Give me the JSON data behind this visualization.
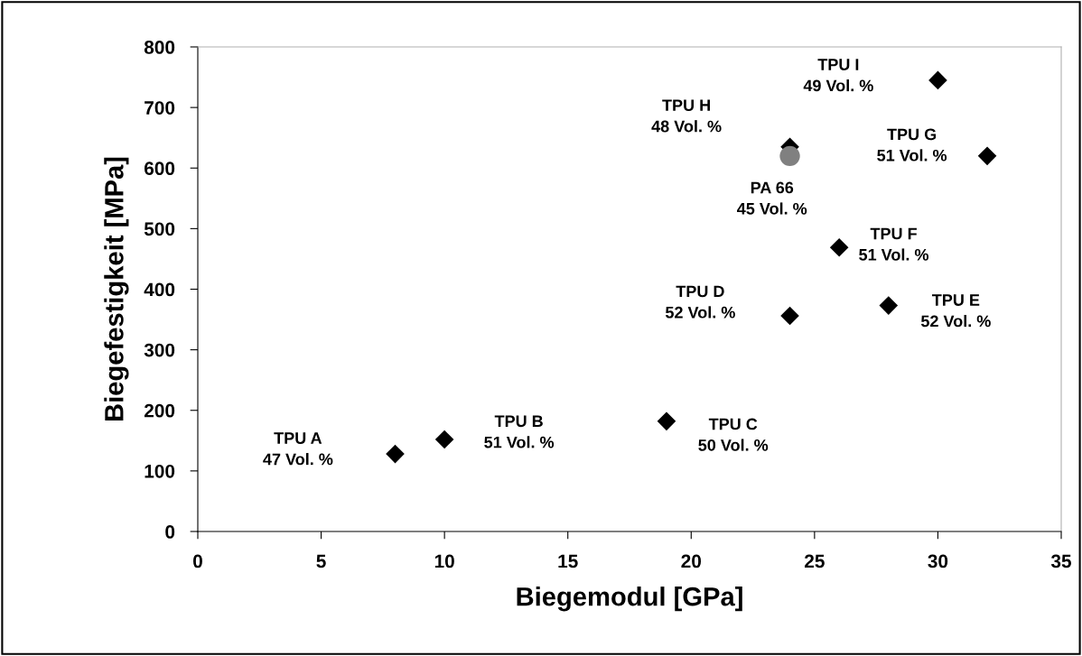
{
  "chart_data": {
    "type": "scatter",
    "xlabel": "Biegemodul [GPa]",
    "ylabel": "Biegefestigkeit [MPa]",
    "xlim": [
      0,
      35
    ],
    "xticks": [
      0,
      5,
      10,
      15,
      20,
      25,
      30,
      35
    ],
    "ylim": [
      0,
      800
    ],
    "yticks": [
      0,
      100,
      200,
      300,
      400,
      500,
      600,
      700,
      800
    ],
    "grid": false,
    "legend": false,
    "series": [
      {
        "color": "#000000",
        "marker": "diamond",
        "x": [
          8,
          10,
          19,
          24,
          28,
          26,
          32,
          24,
          30
        ],
        "values": [
          128,
          152,
          182,
          356,
          373,
          469,
          620,
          635,
          745
        ]
      },
      {
        "color": "#808080",
        "marker": "circle",
        "x": [
          24
        ],
        "values": [
          620
        ]
      }
    ],
    "annotations": [
      "TPU A\n47 Vol. %",
      "TPU B\n51 Vol. %",
      "TPU C\n50 Vol. %",
      "TPU D\n52 Vol. %",
      "TPU E\n52 Vol. %",
      "TPU F\n51 Vol. %",
      "TPU G\n51 Vol. %",
      "TPU H\n48 Vol. %",
      "TPU I\n49 Vol. %",
      "PA 66\n45 Vol. %"
    ]
  }
}
